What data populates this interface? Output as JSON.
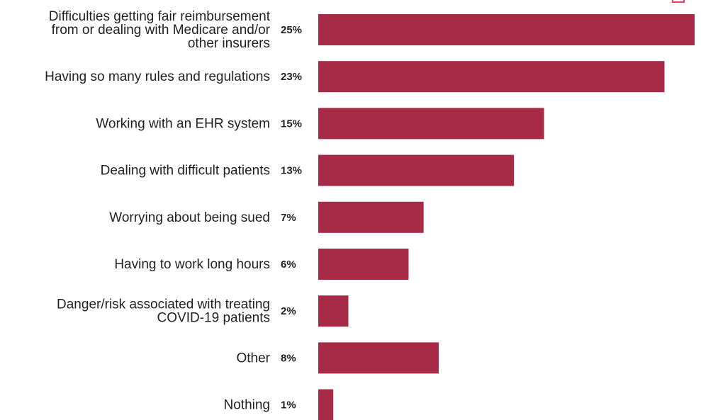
{
  "chart_data": {
    "type": "bar",
    "orientation": "horizontal",
    "categories": [
      "Difficulties getting fair reimbursement\nfrom or dealing with Medicare and/or\nother insurers",
      "Having so many rules and regulations",
      "Working with an EHR system",
      "Dealing with difficult patients",
      "Worrying about being sued",
      "Having to work long hours",
      "Danger/risk associated with treating\nCOVID-19 patients",
      "Other",
      "Nothing"
    ],
    "values": [
      25,
      23,
      15,
      13,
      7,
      6,
      2,
      8,
      1
    ],
    "value_labels": [
      "25%",
      "23%",
      "15%",
      "13%",
      "7%",
      "6%",
      "2%",
      "8%",
      "1%"
    ],
    "unit": "%",
    "xlim": [
      0,
      25
    ],
    "bar_color": "#a72a47",
    "grid": false,
    "title": "",
    "xlabel": "",
    "ylabel": ""
  }
}
